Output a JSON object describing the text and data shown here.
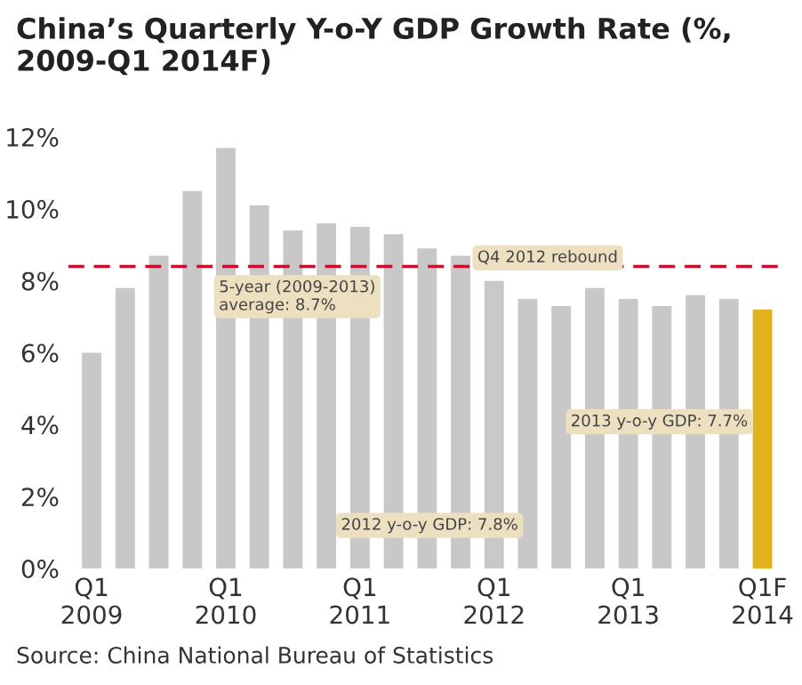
{
  "chart_data": {
    "type": "bar",
    "title": "China’s Quarterly Y-o-Y GDP Growth Rate (%, 2009-Q1 2014F)",
    "categories": [
      "Q1\n2009",
      null,
      null,
      null,
      "Q1\n2010",
      null,
      null,
      null,
      "Q1\n2011",
      null,
      null,
      null,
      "Q1\n2012",
      null,
      null,
      null,
      "Q1\n2013",
      null,
      null,
      null,
      "Q1F\n2014"
    ],
    "values": [
      6.0,
      7.8,
      8.7,
      10.5,
      11.7,
      10.1,
      9.4,
      9.6,
      9.5,
      9.3,
      8.9,
      8.7,
      8.0,
      7.5,
      7.3,
      7.8,
      7.5,
      7.3,
      7.6,
      7.5,
      7.2
    ],
    "colors": [
      "#c8c8c8",
      "#c8c8c8",
      "#c8c8c8",
      "#c8c8c8",
      "#c8c8c8",
      "#c8c8c8",
      "#c8c8c8",
      "#c8c8c8",
      "#c8c8c8",
      "#c8c8c8",
      "#c8c8c8",
      "#c8c8c8",
      "#c8c8c8",
      "#c8c8c8",
      "#c8c8c8",
      "#c8c8c8",
      "#c8c8c8",
      "#c8c8c8",
      "#c8c8c8",
      "#c8c8c8",
      "#e0b21e"
    ],
    "ylim": [
      0,
      12
    ],
    "yticks": [
      {
        "value": 0,
        "label": "0%"
      },
      {
        "value": 2,
        "label": "2%"
      },
      {
        "value": 4,
        "label": "4%"
      },
      {
        "value": 6,
        "label": "6%"
      },
      {
        "value": 8,
        "label": "8%"
      },
      {
        "value": 10,
        "label": "10%"
      },
      {
        "value": 12,
        "label": "12%"
      }
    ],
    "ref_lines": [
      {
        "axis": "y",
        "value": 8.4,
        "color": "#c8102e",
        "line_style": "dashed"
      }
    ],
    "annotations": [
      "5-year (2009-2013)\naverage: 8.7%",
      "Q4 2012 rebound",
      "2013 y-o-y GDP: 7.7%",
      "2012 y-o-y GDP: 7.8%",
      "Source: China National Bureau of Statistics"
    ],
    "grid": false
  }
}
